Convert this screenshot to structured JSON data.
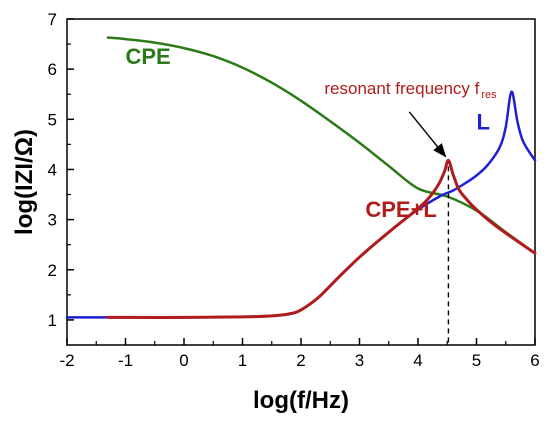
{
  "chart_data": {
    "type": "line",
    "xlabel": "log(f/Hz)",
    "ylabel": "log(IZI/Ω)",
    "xlim": [
      -2,
      6
    ],
    "ylim": [
      0.5,
      7
    ],
    "xticks": [
      -2,
      -1,
      0,
      1,
      2,
      3,
      4,
      5,
      6
    ],
    "xtick_labels": [
      "-2",
      "-1",
      "0",
      "1",
      "2",
      "3",
      "4",
      "5",
      "6"
    ],
    "yticks": [
      1,
      2,
      3,
      4,
      5,
      6,
      7
    ],
    "ytick_labels": [
      "1",
      "2",
      "3",
      "4",
      "5",
      "6",
      "7"
    ],
    "grid": false,
    "legend": "none",
    "series": [
      {
        "name": "CPE",
        "color": "#2b7a1a",
        "x": [
          -1.3,
          -1.0,
          -0.5,
          0.0,
          0.5,
          1.0,
          1.5,
          2.0,
          2.5,
          3.0,
          3.5,
          4.0,
          4.5,
          5.0,
          5.5,
          6.0
        ],
        "y": [
          6.63,
          6.6,
          6.53,
          6.42,
          6.26,
          6.03,
          5.73,
          5.37,
          4.96,
          4.53,
          4.07,
          3.62,
          3.46,
          3.18,
          2.75,
          2.33
        ]
      },
      {
        "name": "L",
        "color": "#1f1fd6",
        "x": [
          -2.0,
          -1.0,
          0.0,
          1.0,
          1.5,
          1.8,
          2.0,
          2.3,
          2.6,
          3.0,
          3.5,
          4.0,
          4.4,
          4.6,
          4.8,
          5.0,
          5.2,
          5.4,
          5.5,
          5.6,
          5.7,
          5.8,
          6.0
        ],
        "y": [
          1.05,
          1.05,
          1.05,
          1.06,
          1.08,
          1.12,
          1.2,
          1.45,
          1.8,
          2.25,
          2.75,
          3.2,
          3.48,
          3.58,
          3.72,
          3.88,
          4.1,
          4.45,
          4.85,
          5.55,
          4.95,
          4.55,
          4.18
        ]
      },
      {
        "name": "CPE+L",
        "color": "#b01c1c",
        "x": [
          -1.3,
          -1.0,
          0.0,
          1.0,
          1.5,
          1.8,
          2.0,
          2.3,
          2.6,
          3.0,
          3.5,
          4.0,
          4.2,
          4.35,
          4.45,
          4.52,
          4.6,
          4.7,
          4.85,
          5.0,
          5.3,
          5.6,
          6.0
        ],
        "y": [
          1.05,
          1.05,
          1.05,
          1.06,
          1.08,
          1.12,
          1.2,
          1.45,
          1.8,
          2.25,
          2.75,
          3.22,
          3.45,
          3.7,
          3.95,
          4.18,
          3.9,
          3.6,
          3.38,
          3.2,
          2.9,
          2.65,
          2.33
        ]
      }
    ],
    "series_labels": [
      "CPE",
      "L",
      "CPE+L"
    ],
    "annotations": [
      {
        "text_main": "resonant frequency f",
        "text_sub": "res",
        "color": "#b01c1c",
        "arrow_to": [
          4.52,
          4.18
        ],
        "vline_x": 4.52
      }
    ]
  }
}
